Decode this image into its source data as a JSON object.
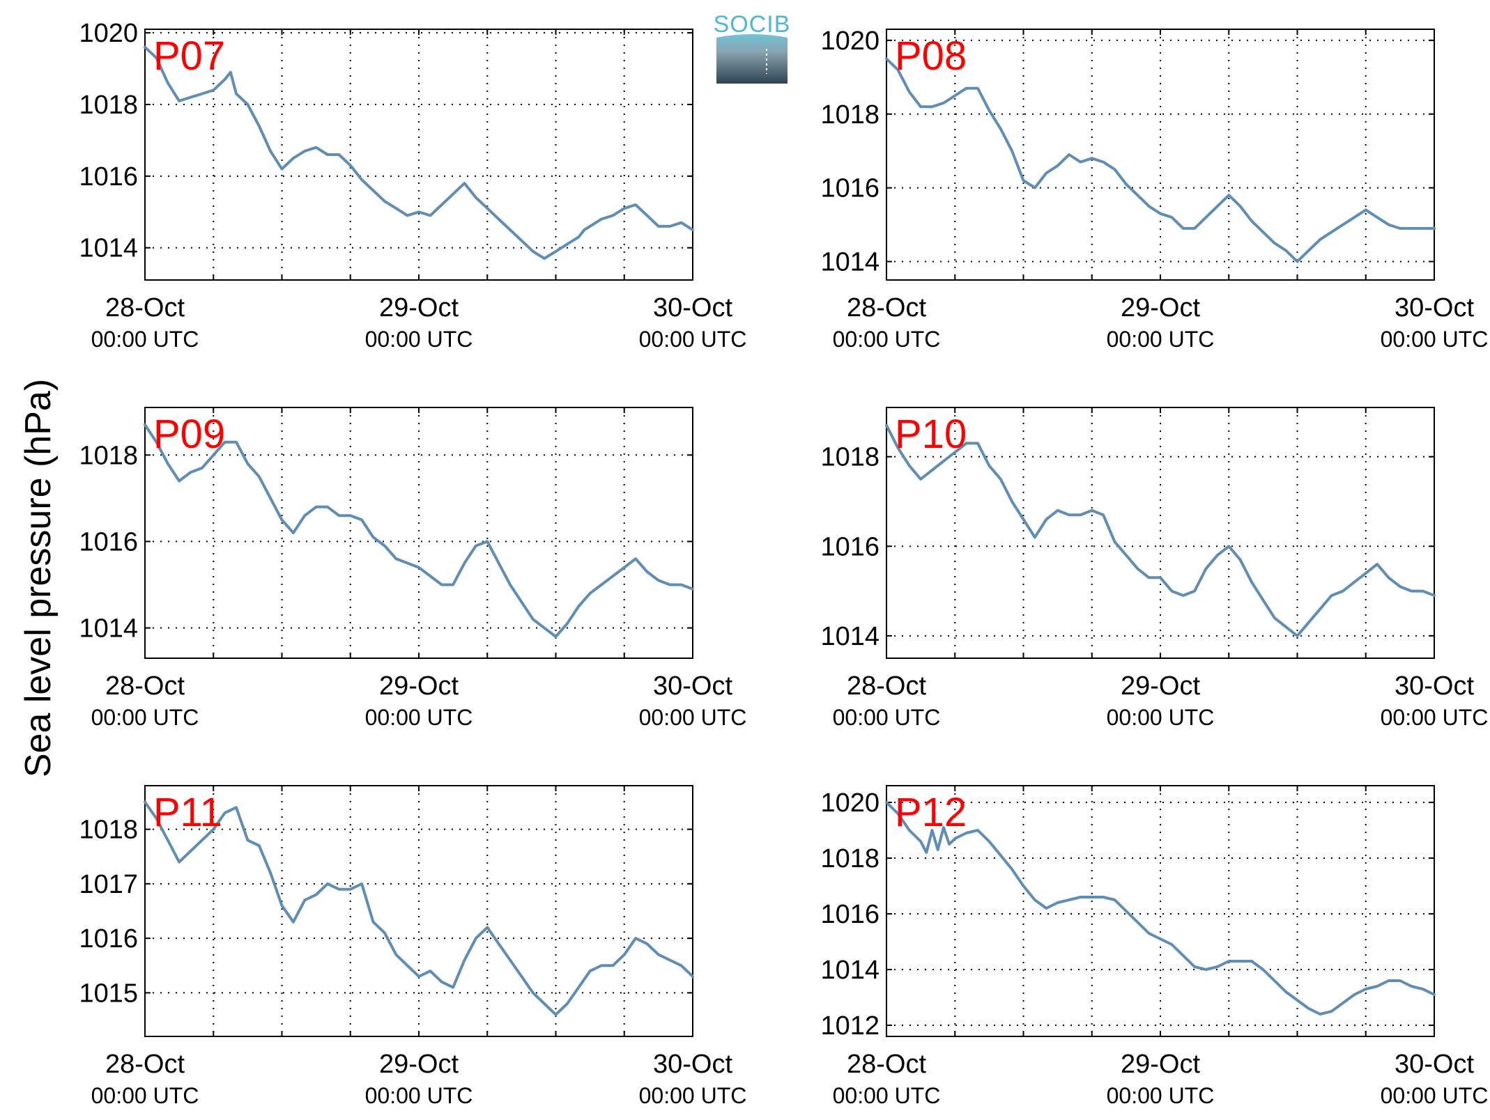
{
  "figure": {
    "ylabel": "Sea level pressure (hPa)",
    "logo": {
      "name": "socib-logo",
      "text": "SOCIB"
    },
    "line_color": "#5f8db4",
    "label_color": "#ff0000"
  },
  "chart_data": [
    {
      "type": "line",
      "title": "P07",
      "x_ticks": [
        "28-Oct",
        "29-Oct",
        "30-Oct"
      ],
      "x_ticks_sub": [
        "00:00 UTC",
        "00:00 UTC",
        "00:00 UTC"
      ],
      "xlim": [
        0,
        48
      ],
      "ylim": [
        1013.1,
        1020.1
      ],
      "y_ticks": [
        1014,
        1016,
        1018,
        1020
      ],
      "grid": true,
      "series": [
        {
          "x": [
            0,
            1,
            2,
            3,
            4,
            5,
            6,
            7,
            7.5,
            8,
            9,
            10,
            11,
            12,
            13,
            14,
            15,
            16,
            17,
            18,
            19,
            20,
            21,
            22,
            23,
            24,
            25,
            26,
            27,
            28,
            29,
            30,
            31,
            32,
            33,
            34,
            35,
            36,
            37,
            38,
            38.5,
            39,
            40,
            41,
            42,
            43,
            44,
            45,
            46,
            47,
            48
          ],
          "y": [
            1019.6,
            1019.3,
            1018.6,
            1018.1,
            1018.2,
            1018.3,
            1018.4,
            1018.7,
            1018.9,
            1018.3,
            1018.0,
            1017.4,
            1016.7,
            1016.2,
            1016.5,
            1016.7,
            1016.8,
            1016.6,
            1016.6,
            1016.3,
            1015.9,
            1015.6,
            1015.3,
            1015.1,
            1014.9,
            1015.0,
            1014.9,
            1015.2,
            1015.5,
            1015.8,
            1015.4,
            1015.1,
            1014.8,
            1014.5,
            1014.2,
            1013.9,
            1013.7,
            1013.9,
            1014.1,
            1014.3,
            1014.5,
            1014.6,
            1014.8,
            1014.9,
            1015.1,
            1015.2,
            1014.9,
            1014.6,
            1014.6,
            1014.7,
            1014.5
          ]
        }
      ]
    },
    {
      "type": "line",
      "title": "P08",
      "x_ticks": [
        "28-Oct",
        "29-Oct",
        "30-Oct"
      ],
      "x_ticks_sub": [
        "00:00 UTC",
        "00:00 UTC",
        "00:00 UTC"
      ],
      "xlim": [
        0,
        48
      ],
      "ylim": [
        1013.5,
        1020.3
      ],
      "y_ticks": [
        1014,
        1016,
        1018,
        1020
      ],
      "grid": true,
      "series": [
        {
          "x": [
            0,
            1,
            2,
            3,
            4,
            5,
            6,
            7,
            8,
            9,
            10,
            11,
            12,
            13,
            14,
            15,
            16,
            17,
            18,
            19,
            20,
            21,
            22,
            23,
            24,
            25,
            26,
            27,
            28,
            29,
            30,
            31,
            32,
            33,
            34,
            35,
            36,
            37,
            38,
            39,
            40,
            41,
            42,
            43,
            44,
            45,
            46,
            47,
            48
          ],
          "y": [
            1019.5,
            1019.2,
            1018.6,
            1018.2,
            1018.2,
            1018.3,
            1018.5,
            1018.7,
            1018.7,
            1018.1,
            1017.6,
            1017.0,
            1016.2,
            1016.0,
            1016.4,
            1016.6,
            1016.9,
            1016.7,
            1016.8,
            1016.7,
            1016.5,
            1016.1,
            1015.8,
            1015.5,
            1015.3,
            1015.2,
            1014.9,
            1014.9,
            1015.2,
            1015.5,
            1015.8,
            1015.5,
            1015.1,
            1014.8,
            1014.5,
            1014.3,
            1014.0,
            1014.3,
            1014.6,
            1014.8,
            1015.0,
            1015.2,
            1015.4,
            1015.2,
            1015.0,
            1014.9,
            1014.9,
            1014.9,
            1014.9
          ]
        }
      ]
    },
    {
      "type": "line",
      "title": "P09",
      "x_ticks": [
        "28-Oct",
        "29-Oct",
        "30-Oct"
      ],
      "x_ticks_sub": [
        "00:00 UTC",
        "00:00 UTC",
        "00:00 UTC"
      ],
      "xlim": [
        0,
        48
      ],
      "ylim": [
        1013.3,
        1019.1
      ],
      "y_ticks": [
        1014,
        1016,
        1018
      ],
      "grid": true,
      "series": [
        {
          "x": [
            0,
            1,
            2,
            3,
            4,
            5,
            6,
            7,
            8,
            9,
            10,
            11,
            12,
            13,
            14,
            15,
            16,
            17,
            18,
            19,
            20,
            21,
            22,
            23,
            24,
            25,
            26,
            27,
            28,
            29,
            30,
            31,
            32,
            33,
            34,
            35,
            36,
            37,
            38,
            39,
            40,
            41,
            42,
            43,
            44,
            45,
            46,
            47,
            48
          ],
          "y": [
            1018.7,
            1018.3,
            1017.8,
            1017.4,
            1017.6,
            1017.7,
            1018.0,
            1018.3,
            1018.3,
            1017.8,
            1017.5,
            1017.0,
            1016.5,
            1016.2,
            1016.6,
            1016.8,
            1016.8,
            1016.6,
            1016.6,
            1016.5,
            1016.1,
            1015.9,
            1015.6,
            1015.5,
            1015.4,
            1015.2,
            1015.0,
            1015.0,
            1015.5,
            1015.9,
            1016.0,
            1015.5,
            1015.0,
            1014.6,
            1014.2,
            1014.0,
            1013.8,
            1014.1,
            1014.5,
            1014.8,
            1015.0,
            1015.2,
            1015.4,
            1015.6,
            1015.3,
            1015.1,
            1015.0,
            1015.0,
            1014.9
          ]
        }
      ]
    },
    {
      "type": "line",
      "title": "P10",
      "x_ticks": [
        "28-Oct",
        "29-Oct",
        "30-Oct"
      ],
      "x_ticks_sub": [
        "00:00 UTC",
        "00:00 UTC",
        "00:00 UTC"
      ],
      "xlim": [
        0,
        48
      ],
      "ylim": [
        1013.5,
        1019.1
      ],
      "y_ticks": [
        1014,
        1016,
        1018
      ],
      "grid": true,
      "series": [
        {
          "x": [
            0,
            1,
            2,
            3,
            4,
            5,
            6,
            7,
            8,
            9,
            10,
            11,
            12,
            13,
            14,
            15,
            16,
            17,
            18,
            19,
            20,
            21,
            22,
            23,
            24,
            25,
            26,
            27,
            28,
            29,
            30,
            31,
            32,
            33,
            34,
            35,
            36,
            37,
            38,
            39,
            40,
            41,
            42,
            43,
            44,
            45,
            46,
            47,
            48
          ],
          "y": [
            1018.7,
            1018.2,
            1017.8,
            1017.5,
            1017.7,
            1017.9,
            1018.1,
            1018.3,
            1018.3,
            1017.8,
            1017.5,
            1017.0,
            1016.6,
            1016.2,
            1016.6,
            1016.8,
            1016.7,
            1016.7,
            1016.8,
            1016.7,
            1016.1,
            1015.8,
            1015.5,
            1015.3,
            1015.3,
            1015.0,
            1014.9,
            1015.0,
            1015.5,
            1015.8,
            1016.0,
            1015.7,
            1015.2,
            1014.8,
            1014.4,
            1014.2,
            1014.0,
            1014.3,
            1014.6,
            1014.9,
            1015.0,
            1015.2,
            1015.4,
            1015.6,
            1015.3,
            1015.1,
            1015.0,
            1015.0,
            1014.9
          ]
        }
      ]
    },
    {
      "type": "line",
      "title": "P11",
      "x_ticks": [
        "28-Oct",
        "29-Oct",
        "30-Oct"
      ],
      "x_ticks_sub": [
        "00:00 UTC",
        "00:00 UTC",
        "00:00 UTC"
      ],
      "xlim": [
        0,
        48
      ],
      "ylim": [
        1014.2,
        1018.8
      ],
      "y_ticks": [
        1015,
        1016,
        1017,
        1018
      ],
      "grid": true,
      "series": [
        {
          "x": [
            0,
            1,
            2,
            3,
            4,
            5,
            6,
            7,
            8,
            9,
            10,
            11,
            12,
            13,
            14,
            15,
            16,
            17,
            18,
            19,
            20,
            21,
            22,
            23,
            24,
            25,
            26,
            27,
            28,
            29,
            30,
            31,
            32,
            33,
            34,
            35,
            36,
            37,
            38,
            39,
            40,
            41,
            42,
            43,
            44,
            45,
            46,
            47,
            48
          ],
          "y": [
            1018.5,
            1018.2,
            1017.8,
            1017.4,
            1017.6,
            1017.8,
            1018.0,
            1018.3,
            1018.4,
            1017.8,
            1017.7,
            1017.2,
            1016.6,
            1016.3,
            1016.7,
            1016.8,
            1017.0,
            1016.9,
            1016.9,
            1017.0,
            1016.3,
            1016.1,
            1015.7,
            1015.5,
            1015.3,
            1015.4,
            1015.2,
            1015.1,
            1015.6,
            1016.0,
            1016.2,
            1015.9,
            1015.6,
            1015.3,
            1015.0,
            1014.8,
            1014.6,
            1014.8,
            1015.1,
            1015.4,
            1015.5,
            1015.5,
            1015.7,
            1016.0,
            1015.9,
            1015.7,
            1015.6,
            1015.5,
            1015.3
          ]
        }
      ]
    },
    {
      "type": "line",
      "title": "P12",
      "x_ticks": [
        "28-Oct",
        "29-Oct",
        "30-Oct"
      ],
      "x_ticks_sub": [
        "00:00 UTC",
        "00:00 UTC",
        "00:00 UTC"
      ],
      "xlim": [
        0,
        48
      ],
      "ylim": [
        1011.6,
        1020.6
      ],
      "y_ticks": [
        1012,
        1014,
        1016,
        1018,
        1020
      ],
      "grid": true,
      "series": [
        {
          "x": [
            0,
            1,
            2,
            3,
            3.5,
            4,
            4.5,
            5,
            5.5,
            6,
            7,
            8,
            9,
            10,
            11,
            12,
            13,
            14,
            15,
            16,
            17,
            18,
            19,
            20,
            21,
            22,
            23,
            24,
            25,
            26,
            27,
            28,
            29,
            30,
            31,
            32,
            33,
            34,
            35,
            36,
            37,
            38,
            39,
            40,
            41,
            42,
            43,
            44,
            45,
            46,
            47,
            48
          ],
          "y": [
            1020.0,
            1019.6,
            1019.0,
            1018.6,
            1018.2,
            1019.0,
            1018.3,
            1019.1,
            1018.5,
            1018.7,
            1018.9,
            1019.0,
            1018.6,
            1018.1,
            1017.6,
            1017.0,
            1016.5,
            1016.2,
            1016.4,
            1016.5,
            1016.6,
            1016.6,
            1016.6,
            1016.5,
            1016.1,
            1015.7,
            1015.3,
            1015.1,
            1014.9,
            1014.5,
            1014.1,
            1014.0,
            1014.1,
            1014.3,
            1014.3,
            1014.3,
            1014.0,
            1013.6,
            1013.2,
            1012.9,
            1012.6,
            1012.4,
            1012.5,
            1012.8,
            1013.1,
            1013.3,
            1013.4,
            1013.6,
            1013.6,
            1013.4,
            1013.3,
            1013.1
          ]
        }
      ]
    }
  ]
}
